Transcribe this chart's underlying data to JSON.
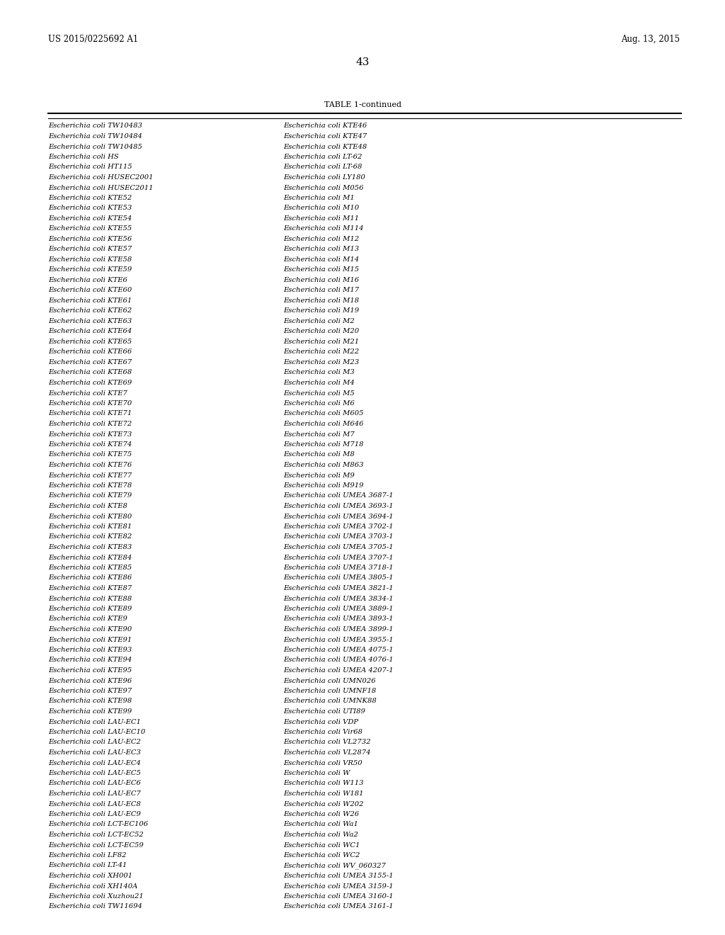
{
  "header_left": "US 2015/0225692 A1",
  "header_right": "Aug. 13, 2015",
  "page_number": "43",
  "table_title": "TABLE 1-continued",
  "col1": [
    "Escherichia coli TW10483",
    "Escherichia coli TW10484",
    "Escherichia coli TW10485",
    "Escherichia coli HS",
    "Escherichia coli HT115",
    "Escherichia coli HUSEC2001",
    "Escherichia coli HUSEC2011",
    "Escherichia coli KTE52",
    "Escherichia coli KTE53",
    "Escherichia coli KTE54",
    "Escherichia coli KTE55",
    "Escherichia coli KTE56",
    "Escherichia coli KTE57",
    "Escherichia coli KTE58",
    "Escherichia coli KTE59",
    "Escherichia coli KTE6",
    "Escherichia coli KTE60",
    "Escherichia coli KTE61",
    "Escherichia coli KTE62",
    "Escherichia coli KTE63",
    "Escherichia coli KTE64",
    "Escherichia coli KTE65",
    "Escherichia coli KTE66",
    "Escherichia coli KTE67",
    "Escherichia coli KTE68",
    "Escherichia coli KTE69",
    "Escherichia coli KTE7",
    "Escherichia coli KTE70",
    "Escherichia coli KTE71",
    "Escherichia coli KTE72",
    "Escherichia coli KTE73",
    "Escherichia coli KTE74",
    "Escherichia coli KTE75",
    "Escherichia coli KTE76",
    "Escherichia coli KTE77",
    "Escherichia coli KTE78",
    "Escherichia coli KTE79",
    "Escherichia coli KTE8",
    "Escherichia coli KTE80",
    "Escherichia coli KTE81",
    "Escherichia coli KTE82",
    "Escherichia coli KTE83",
    "Escherichia coli KTE84",
    "Escherichia coli KTE85",
    "Escherichia coli KTE86",
    "Escherichia coli KTE87",
    "Escherichia coli KTE88",
    "Escherichia coli KTE89",
    "Escherichia coli KTE9",
    "Escherichia coli KTE90",
    "Escherichia coli KTE91",
    "Escherichia coli KTE93",
    "Escherichia coli KTE94",
    "Escherichia coli KTE95",
    "Escherichia coli KTE96",
    "Escherichia coli KTE97",
    "Escherichia coli KTE98",
    "Escherichia coli KTE99",
    "Escherichia coli LAU-EC1",
    "Escherichia coli LAU-EC10",
    "Escherichia coli LAU-EC2",
    "Escherichia coli LAU-EC3",
    "Escherichia coli LAU-EC4",
    "Escherichia coli LAU-EC5",
    "Escherichia coli LAU-EC6",
    "Escherichia coli LAU-EC7",
    "Escherichia coli LAU-EC8",
    "Escherichia coli LAU-EC9",
    "Escherichia coli LCT-EC106",
    "Escherichia coli LCT-EC52",
    "Escherichia coli LCT-EC59",
    "Escherichia coli LF82",
    "Escherichia coli LT-41",
    "Escherichia coli XH001",
    "Escherichia coli XH140A",
    "Escherichia coli Xuzhou21",
    "Escherichia coli TW11694"
  ],
  "col2": [
    "Escherichia coli KTE46",
    "Escherichia coli KTE47",
    "Escherichia coli KTE48",
    "Escherichia coli LT-62",
    "Escherichia coli LT-68",
    "Escherichia coli LY180",
    "Escherichia coli M056",
    "Escherichia coli M1",
    "Escherichia coli M10",
    "Escherichia coli M11",
    "Escherichia coli M114",
    "Escherichia coli M12",
    "Escherichia coli M13",
    "Escherichia coli M14",
    "Escherichia coli M15",
    "Escherichia coli M16",
    "Escherichia coli M17",
    "Escherichia coli M18",
    "Escherichia coli M19",
    "Escherichia coli M2",
    "Escherichia coli M20",
    "Escherichia coli M21",
    "Escherichia coli M22",
    "Escherichia coli M23",
    "Escherichia coli M3",
    "Escherichia coli M4",
    "Escherichia coli M5",
    "Escherichia coli M6",
    "Escherichia coli M605",
    "Escherichia coli M646",
    "Escherichia coli M7",
    "Escherichia coli M718",
    "Escherichia coli M8",
    "Escherichia coli M863",
    "Escherichia coli M9",
    "Escherichia coli M919",
    "Escherichia coli UMEA 3687-1",
    "Escherichia coli UMEA 3693-1",
    "Escherichia coli UMEA 3694-1",
    "Escherichia coli UMEA 3702-1",
    "Escherichia coli UMEA 3703-1",
    "Escherichia coli UMEA 3705-1",
    "Escherichia coli UMEA 3707-1",
    "Escherichia coli UMEA 3718-1",
    "Escherichia coli UMEA 3805-1",
    "Escherichia coli UMEA 3821-1",
    "Escherichia coli UMEA 3834-1",
    "Escherichia coli UMEA 3889-1",
    "Escherichia coli UMEA 3893-1",
    "Escherichia coli UMEA 3899-1",
    "Escherichia coli UMEA 3955-1",
    "Escherichia coli UMEA 4075-1",
    "Escherichia coli UMEA 4076-1",
    "Escherichia coli UMEA 4207-1",
    "Escherichia coli UMN026",
    "Escherichia coli UMNF18",
    "Escherichia coli UMNK88",
    "Escherichia coli UTI89",
    "Escherichia coli VDP",
    "Escherichia coli Vir68",
    "Escherichia coli VL2732",
    "Escherichia coli VL2874",
    "Escherichia coli VR50",
    "Escherichia coli W",
    "Escherichia coli W113",
    "Escherichia coli W181",
    "Escherichia coli W202",
    "Escherichia coli W26",
    "Escherichia coli Wa1",
    "Escherichia coli Wa2",
    "Escherichia coli WC1",
    "Escherichia coli WC2",
    "Escherichia coli WV_060327",
    "Escherichia coli UMEA 3155-1",
    "Escherichia coli UMEA 3159-1",
    "Escherichia coli UMEA 3160-1",
    "Escherichia coli UMEA 3161-1"
  ],
  "bg_color": "#ffffff",
  "text_color": "#000000",
  "font_size": 7.2,
  "header_fontsize": 8.5,
  "title_fontsize": 8.0,
  "page_num_fontsize": 11
}
